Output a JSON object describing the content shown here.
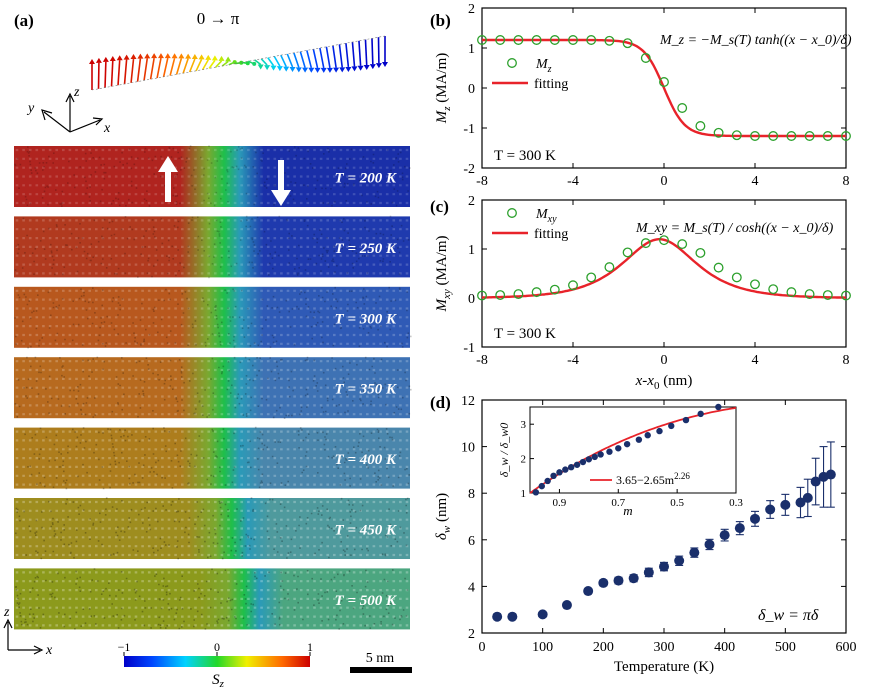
{
  "colors": {
    "fit": "#e8232a",
    "marker_green": "#2ca02c",
    "dot_navy": "#1a2f6b",
    "jet_low": "#1a2fa8",
    "jet_mid": "#19c21f",
    "jet_high": "#b0241f"
  },
  "panel_a": {
    "label": "(a)",
    "spin_title": "0 → π",
    "axes": {
      "x": "x",
      "y": "y",
      "z": "z"
    },
    "strips": [
      {
        "temperature": "T = 200 K",
        "low_color": "#1a2fa8",
        "high_color": "#b0241f",
        "wall_frac": 0.53,
        "noise": 0.08
      },
      {
        "temperature": "T = 250 K",
        "low_color": "#1f3aae",
        "high_color": "#b13a1f",
        "wall_frac": 0.53,
        "noise": 0.12
      },
      {
        "temperature": "T = 300 K",
        "low_color": "#2f5ab6",
        "high_color": "#b8581e",
        "wall_frac": 0.53,
        "noise": 0.16
      },
      {
        "temperature": "T = 350 K",
        "low_color": "#3e72b4",
        "high_color": "#b76a1f",
        "wall_frac": 0.53,
        "noise": 0.2
      },
      {
        "temperature": "T = 400 K",
        "low_color": "#4a86ac",
        "high_color": "#ad7d1d",
        "wall_frac": 0.53,
        "noise": 0.24
      },
      {
        "temperature": "T = 450 K",
        "low_color": "#4f9a9d",
        "high_color": "#9e8d1f",
        "wall_frac": 0.55,
        "noise": 0.28
      },
      {
        "temperature": "T = 500 K",
        "low_color": "#4ca680",
        "high_color": "#8c9a1c",
        "wall_frac": 0.58,
        "noise": 0.3
      }
    ],
    "colorbar": {
      "label": "S",
      "label_sub": "z",
      "ticks": [
        "−1",
        "0",
        "1"
      ]
    },
    "scalebar": "5 nm",
    "bottom_axes": {
      "z": "z",
      "x": "x"
    }
  },
  "chart_data": [
    {
      "panel": "(b)",
      "type": "scatter",
      "x": [
        -8,
        -7.2,
        -6.4,
        -5.6,
        -4.8,
        -4.0,
        -3.2,
        -2.4,
        -1.6,
        -0.8,
        0.0,
        0.8,
        1.6,
        2.4,
        3.2,
        4.0,
        4.8,
        5.6,
        6.4,
        7.2,
        8.0
      ],
      "series": [
        {
          "name": "M",
          "name_sub": "z",
          "kind": "markers",
          "values": [
            1.2,
            1.2,
            1.2,
            1.2,
            1.2,
            1.2,
            1.2,
            1.18,
            1.12,
            0.75,
            0.15,
            -0.5,
            -0.95,
            -1.12,
            -1.18,
            -1.2,
            -1.2,
            -1.2,
            -1.2,
            -1.2,
            -1.2
          ]
        },
        {
          "name": "fitting",
          "kind": "line",
          "function": "tanh",
          "Ms": 1.2,
          "delta": 0.9
        }
      ],
      "xlim": [
        -8,
        8
      ],
      "ylim": [
        -2,
        2
      ],
      "xticks": [
        -8,
        -4,
        0,
        4,
        8
      ],
      "yticks": [
        -2,
        -1,
        0,
        1,
        2
      ],
      "ylabel": "M",
      "ylabel_sub": "z",
      "ylabel_unit": " (MA/m)",
      "annotation": "T = 300 K",
      "equation": "M_z = −M_s(T) tanh((x − x_0)/δ)"
    },
    {
      "panel": "(c)",
      "type": "scatter",
      "x": [
        -8,
        -7.2,
        -6.4,
        -5.6,
        -4.8,
        -4.0,
        -3.2,
        -2.4,
        -1.6,
        -0.8,
        0.0,
        0.8,
        1.6,
        2.4,
        3.2,
        4.0,
        4.8,
        5.6,
        6.4,
        7.2,
        8.0
      ],
      "series": [
        {
          "name": "M",
          "name_sub": "xy",
          "kind": "markers",
          "values": [
            0.05,
            0.06,
            0.08,
            0.12,
            0.17,
            0.26,
            0.42,
            0.63,
            0.93,
            1.12,
            1.18,
            1.1,
            0.92,
            0.62,
            0.42,
            0.28,
            0.18,
            0.12,
            0.08,
            0.06,
            0.05
          ]
        },
        {
          "name": "fitting",
          "kind": "line",
          "function": "sech",
          "Ms": 1.2,
          "delta": 0.9,
          "x0": -0.2
        }
      ],
      "xlim": [
        -8,
        8
      ],
      "ylim": [
        -1,
        2
      ],
      "xticks": [
        -8,
        -4,
        0,
        4,
        8
      ],
      "yticks": [
        -1,
        0,
        1,
        2
      ],
      "ylabel": "M",
      "ylabel_sub": "xy",
      "ylabel_unit": " (MA/m)",
      "xlabel": "x-x",
      "xlabel_sub": "0",
      "xlabel_unit": " (nm)",
      "annotation": "T = 300 K",
      "equation": "M_xy = M_s(T) / cosh((x − x_0)/δ)"
    },
    {
      "panel": "(d)",
      "type": "scatter",
      "x": [
        25,
        50,
        100,
        140,
        175,
        200,
        225,
        250,
        275,
        300,
        325,
        350,
        375,
        400,
        425,
        450,
        475,
        500,
        525,
        537,
        550,
        563,
        575
      ],
      "values": [
        2.7,
        2.7,
        2.8,
        3.2,
        3.8,
        4.15,
        4.25,
        4.35,
        4.6,
        4.85,
        5.1,
        5.45,
        5.8,
        6.2,
        6.5,
        6.9,
        7.3,
        7.5,
        7.6,
        7.8,
        8.5,
        8.7,
        8.8
      ],
      "errors": [
        0,
        0,
        0,
        0.08,
        0.1,
        0.12,
        0.14,
        0.15,
        0.18,
        0.18,
        0.2,
        0.2,
        0.22,
        0.25,
        0.28,
        0.32,
        0.38,
        0.45,
        0.65,
        0.8,
        1.0,
        1.3,
        1.4
      ],
      "xlim": [
        0,
        600
      ],
      "ylim": [
        2,
        12
      ],
      "xticks": [
        0,
        100,
        200,
        300,
        400,
        500,
        600
      ],
      "yticks": [
        2,
        4,
        6,
        8,
        10,
        12
      ],
      "xlabel": "Temperature (K)",
      "ylabel": "δ",
      "ylabel_sub": "w",
      "ylabel_unit": " (nm)",
      "annotation": "δ_w = πδ",
      "inset": {
        "type": "scatter",
        "x": [
          0.98,
          0.96,
          0.94,
          0.92,
          0.9,
          0.88,
          0.86,
          0.84,
          0.82,
          0.8,
          0.78,
          0.76,
          0.73,
          0.7,
          0.67,
          0.63,
          0.6,
          0.56,
          0.52,
          0.47,
          0.42,
          0.36
        ],
        "values": [
          1.02,
          1.2,
          1.35,
          1.5,
          1.6,
          1.68,
          1.75,
          1.82,
          1.9,
          1.98,
          2.05,
          2.12,
          2.2,
          2.3,
          2.42,
          2.55,
          2.68,
          2.8,
          2.95,
          3.12,
          3.3,
          3.5
        ],
        "fit": {
          "a": 3.65,
          "b": 2.65,
          "exponent": 2.26
        },
        "xlim": [
          1.0,
          0.3
        ],
        "ylim": [
          1,
          3.5
        ],
        "xticks": [
          0.9,
          0.7,
          0.5,
          0.3
        ],
        "yticks": [
          1,
          2,
          3
        ],
        "xlabel": "m",
        "ylabel": "δ_w / δ_w0",
        "legend": "3.65−2.65m",
        "legend_sup": "2.26"
      }
    }
  ]
}
